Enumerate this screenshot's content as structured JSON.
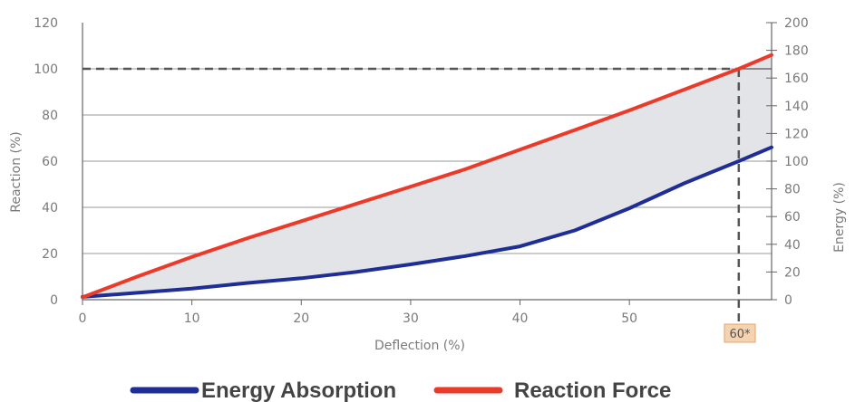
{
  "chart_data": {
    "type": "line",
    "xlabel": "Deflection (%)",
    "ylabel": "Reaction (%)",
    "y2label": "Energy (%)",
    "x_ticks": [
      0,
      10,
      20,
      30,
      40,
      50
    ],
    "y_ticks": [
      0,
      20,
      40,
      60,
      80,
      100,
      120
    ],
    "y2_ticks": [
      0,
      20,
      40,
      60,
      80,
      100,
      120,
      140,
      160,
      180,
      200
    ],
    "xlim": [
      0,
      63
    ],
    "ylim": [
      0,
      120
    ],
    "y2lim": [
      0,
      200
    ],
    "grid": "horizontal",
    "legend_position": "bottom",
    "reference": {
      "x": 60,
      "y_reaction": 100,
      "label": "60*"
    },
    "series": [
      {
        "name": "Energy Absorption",
        "axis": "right",
        "color": "#1f2e96",
        "x": [
          0,
          5,
          10,
          15,
          20,
          25,
          30,
          35,
          40,
          45,
          50,
          55,
          60,
          63
        ],
        "y": [
          2,
          5,
          8,
          12,
          15.5,
          20,
          25.5,
          31.5,
          38.5,
          50,
          66,
          84,
          100,
          110
        ]
      },
      {
        "name": "Reaction Force",
        "axis": "left",
        "color": "#ea3a2a",
        "x": [
          0,
          5,
          10,
          15,
          20,
          25,
          30,
          35,
          40,
          45,
          50,
          55,
          60,
          63
        ],
        "y": [
          1,
          10,
          18.5,
          26.5,
          34,
          41.5,
          49,
          56.5,
          65,
          73.5,
          82,
          91,
          100,
          106
        ]
      }
    ],
    "shaded_area": "between_curves"
  }
}
